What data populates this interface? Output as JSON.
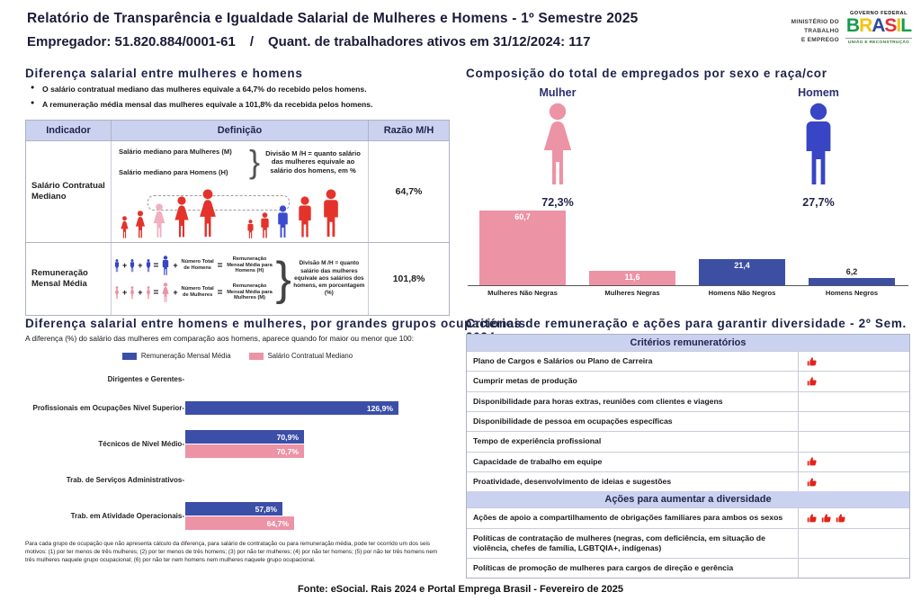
{
  "header": {
    "title": "Relatório de Transparência e Igualdade Salarial de Mulheres e Homens - 1º Semestre 2025",
    "employer": "Empregador: 51.820.884/0001-61",
    "separator": "/",
    "workers": "Quant. de trabalhadores ativos em 31/12/2024: 117",
    "ministry_lines": [
      "MINISTÉRIO DO",
      "TRABALHO",
      "E EMPREGO"
    ],
    "gov": {
      "line1": "GOVERNO FEDERAL",
      "brand": "BRASIL",
      "brand_colors": [
        "#169B4E",
        "#F6C20F",
        "#2B4B9B",
        "#E23131",
        "#F6C20F",
        "#169B4E"
      ],
      "line2": "UNIÃO E RECONSTRUÇÃO"
    }
  },
  "salary_diff": {
    "heading": "Diferença salarial entre mulheres e homens",
    "bullets": [
      "O salário contratual mediano das mulheres equivale a 64,7% do recebido pelos homens.",
      "A remuneração média mensal das mulheres equivale a 101,8% da recebida pelos homens."
    ],
    "operators": {
      "plus": "+",
      "equals": "=",
      "bracket": "}"
    },
    "table": {
      "headers": [
        "Indicador",
        "Definição",
        "Razão M/H"
      ],
      "rows": [
        {
          "indicator": "Salário Contratual Mediano",
          "def_labels": [
            "Salário mediano para Mulheres (M)",
            "Salário mediano para Homens (H)"
          ],
          "note": "Divisão M /H = quanto salário das mulheres equivale ao salário dos homens, em %",
          "ratio": "64,7%"
        },
        {
          "indicator": "Remuneração Mensal Média",
          "men": {
            "count": "Número Total de Homens",
            "result": "Remuneração Mensal Média para Homens (H)"
          },
          "women": {
            "count": "Número Total de Mulheres",
            "result": "Remuneração Mensal Média para Mulheres (M)"
          },
          "note": "Divisão M /H = quanto salário das mulheres equivale aos salários dos homens, em porcentagem (%)",
          "ratio": "101,8%"
        }
      ]
    }
  },
  "composition": {
    "heading": "Composição do total de empregados por sexo e raça/cor",
    "female": {
      "label": "Mulher",
      "pct": "72,3%"
    },
    "male": {
      "label": "Homem",
      "pct": "27,7%"
    }
  },
  "occupational": {
    "heading": "Diferença salarial entre homens e mulheres, por grandes grupos ocupacionais",
    "subtitle": "A diferença (%) do salário das mulheres em comparação aos homens, aparece quando for maior ou menor que 100:",
    "footnote": "Para cada grupo de ocupação que não apresenta cálculo da diferença, para salário de contratação ou para remuneração média, pode ter ocorrido um dos seis motivos: (1) por ter menos de três mulheres; (2) por ter menos de três homens; (3) por não ter mulheres; (4) por não ter homens; (5) por não ter três homens nem três mulheres naquele grupo ocupacional; (6) por não ter nem homens nem mulheres naquele grupo ocupacional."
  },
  "criteria": {
    "heading": "Critérios de remuneração e ações para garantir diversidade - 2º Sem. 2024",
    "check_icon": "thumbs-up-icon",
    "sections": [
      {
        "header": "Critérios remuneratórios",
        "rows": [
          {
            "label": "Plano de Cargos e Salários ou Plano de Carreira",
            "checks": 1
          },
          {
            "label": "Cumprir metas de produção",
            "checks": 1
          },
          {
            "label": "Disponibilidade para horas extras, reuniões com clientes e viagens",
            "checks": 0
          },
          {
            "label": "Disponibilidade de pessoa em ocupações específicas",
            "checks": 0
          },
          {
            "label": "Tempo de experiência profissional",
            "checks": 0
          },
          {
            "label": "Capacidade de trabalho em equipe",
            "checks": 1
          },
          {
            "label": "Proatividade, desenvolvimento de ideias e sugestões",
            "checks": 1
          }
        ]
      },
      {
        "header": "Ações para aumentar a diversidade",
        "rows": [
          {
            "label": "Ações de apoio a compartilhamento de obrigações familiares para ambos os sexos",
            "checks": 3
          },
          {
            "label": "Políticas de contratação de mulheres (negras, com deficiência, em situação de violência, chefes de família, LGBTQIA+, indígenas)",
            "checks": 0
          },
          {
            "label": "Políticas de promoção de mulheres para cargos de direção e gerência",
            "checks": 0
          }
        ]
      }
    ]
  },
  "chart_data": [
    {
      "type": "bar",
      "title": "Composição do total de empregados por sexo e raça/cor",
      "categories": [
        "Mulheres Não Negras",
        "Mulheres Negras",
        "Homens Não Negros",
        "Homens Negros"
      ],
      "values": [
        60.7,
        11.6,
        21.4,
        6.2
      ],
      "value_labels": [
        "60,7",
        "11,6",
        "21,4",
        "6,2"
      ],
      "colors": [
        "#EC93A6",
        "#EC93A6",
        "#3C4FA3",
        "#3C4FA3"
      ],
      "xlabel": "",
      "ylabel": "",
      "ylim": [
        0,
        70
      ],
      "grid": false,
      "legend": false
    },
    {
      "type": "bar",
      "orientation": "horizontal",
      "title": "Diferença salarial entre homens e mulheres, por grandes grupos ocupacionais",
      "categories": [
        "Dirigentes e Gerentes",
        "Profissionais em Ocupações Nível Superior",
        "Técnicos de Nível Médio",
        "Trab. de Serviços Administrativos",
        "Trab. em Atividade Operacionais"
      ],
      "series": [
        {
          "name": "Remuneração Mensal Média",
          "color": "#3B4EA8",
          "values": [
            null,
            126.9,
            70.9,
            null,
            57.8
          ],
          "value_labels": [
            null,
            "126,9%",
            "70,9%",
            null,
            "57,8%"
          ]
        },
        {
          "name": "Salário Contratual Mediano",
          "color": "#EC93A6",
          "values": [
            null,
            null,
            70.7,
            null,
            64.7
          ],
          "value_labels": [
            null,
            null,
            "70,7%",
            null,
            "64,7%"
          ]
        }
      ],
      "xlim": [
        0,
        140
      ],
      "grid": false,
      "legend_position": "top"
    }
  ],
  "footer": "Fonte: eSocial. Rais 2024 e Portal Emprega Brasil - Fevereiro de 2025"
}
